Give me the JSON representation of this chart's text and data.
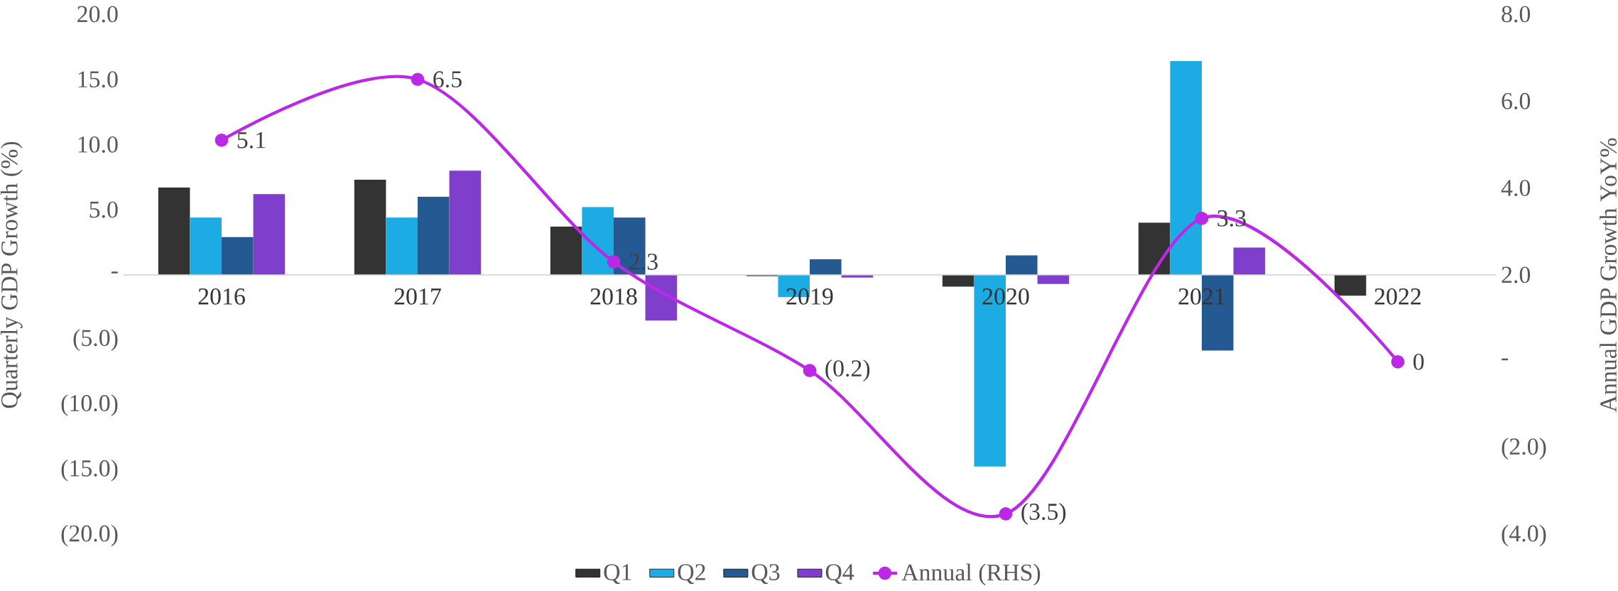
{
  "chart_data": {
    "type": "bar",
    "categories": [
      "2016",
      "2017",
      "2018",
      "2019",
      "2020",
      "2021",
      "2022"
    ],
    "series": [
      {
        "name": "Q1",
        "color": "#333333",
        "values": [
          6.7,
          7.3,
          3.7,
          -0.1,
          -0.9,
          4.0,
          -1.6
        ]
      },
      {
        "name": "Q2",
        "color": "#1cabe2",
        "values": [
          4.4,
          4.4,
          5.2,
          -1.7,
          -14.7,
          16.4,
          null
        ]
      },
      {
        "name": "Q3",
        "color": "#245a91",
        "values": [
          2.9,
          6.0,
          4.4,
          1.2,
          1.5,
          -5.8,
          null
        ]
      },
      {
        "name": "Q4",
        "color": "#7f3fcc",
        "values": [
          6.2,
          8.0,
          -3.5,
          -0.2,
          -0.7,
          2.1,
          null
        ]
      },
      {
        "name": "Annual (RHS)",
        "color": "#bb28e6",
        "type": "line",
        "axis": "y2",
        "marker": "circle",
        "values": [
          5.1,
          6.5,
          2.3,
          -0.2,
          -3.5,
          3.3,
          0
        ],
        "value_labels": [
          "5.1",
          "6.5",
          "2.3",
          "(0.2)",
          "(3.5)",
          "3.3",
          "0"
        ]
      }
    ],
    "ylabel": "Quarterly GDP Growth (%)",
    "y2label": "Annual GDP Growth YoY%",
    "ylim": [
      -20,
      20
    ],
    "yticks": [
      {
        "value": 20,
        "label": "20.0"
      },
      {
        "value": 15,
        "label": "15.0"
      },
      {
        "value": 10,
        "label": "10.0"
      },
      {
        "value": 5,
        "label": "5.0"
      },
      {
        "value": 0,
        "label": "-"
      },
      {
        "value": -5,
        "label": "(5.0)"
      },
      {
        "value": -10,
        "label": "(10.0)"
      },
      {
        "value": -15,
        "label": "(15.0)"
      },
      {
        "value": -20,
        "label": "(20.0)"
      }
    ],
    "y2lim": [
      -4,
      8
    ],
    "y2ticks": [
      {
        "value": 8,
        "label": "8.0"
      },
      {
        "value": 6,
        "label": "6.0"
      },
      {
        "value": 4,
        "label": "4.0"
      },
      {
        "value": 2,
        "label": "2.0"
      },
      {
        "value": 0,
        "label": "-"
      },
      {
        "value": -2,
        "label": "(2.0)"
      },
      {
        "value": -4,
        "label": "(4.0)"
      }
    ],
    "legend": "bottom"
  }
}
